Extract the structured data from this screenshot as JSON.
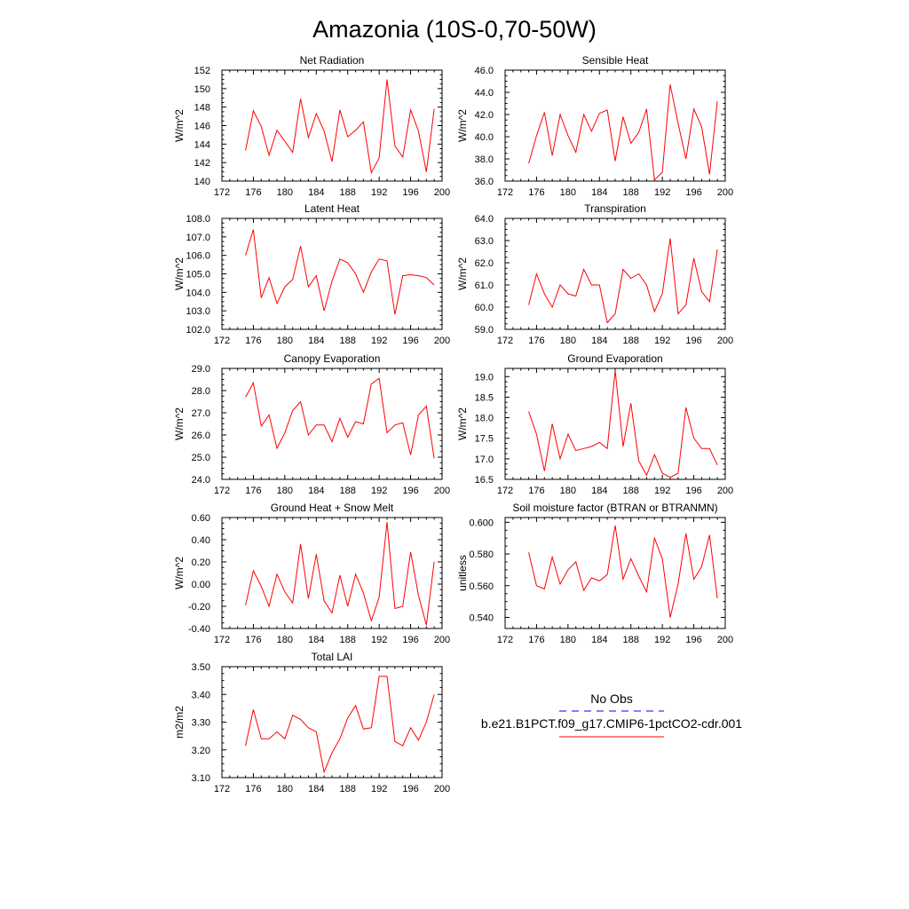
{
  "page_title": "Amazonia (10S-0,70-50W)",
  "legend": {
    "obs_label": "No Obs",
    "model_label": "b.e21.B1PCT.f09_g17.CMIP6-1pctCO2-cdr.001",
    "obs_color": "#0000ff",
    "model_color": "#ff0000"
  },
  "line_color": "#ff0000",
  "chart_data": [
    {
      "type": "line",
      "title": "Net Radiation",
      "ylabel": "W/m^2",
      "xlim": [
        172,
        200
      ],
      "ylim": [
        140,
        152
      ],
      "xticks": [
        172,
        176,
        180,
        184,
        188,
        192,
        196,
        200
      ],
      "xtick_labels": [
        "172",
        "176",
        "180",
        "184",
        "188",
        "192",
        "196",
        "200"
      ],
      "yticks": [
        140,
        142,
        144,
        146,
        148,
        150,
        152
      ],
      "ytick_labels": [
        "140",
        "142",
        "144",
        "146",
        "148",
        "150",
        "152"
      ],
      "x": [
        175,
        176,
        177,
        178,
        179,
        180,
        181,
        182,
        183,
        184,
        185,
        186,
        187,
        188,
        189,
        190,
        191,
        192,
        193,
        194,
        195,
        196,
        197,
        198,
        199
      ],
      "y": [
        143.3,
        147.6,
        145.9,
        142.8,
        145.5,
        144.3,
        143.1,
        148.9,
        144.7,
        147.3,
        145.4,
        142.1,
        147.7,
        144.8,
        145.5,
        146.4,
        140.9,
        142.5,
        151.0,
        143.8,
        142.6,
        147.7,
        145.4,
        141.0,
        147.8
      ]
    },
    {
      "type": "line",
      "title": "Sensible Heat",
      "ylabel": "W/m^2",
      "xlim": [
        172,
        200
      ],
      "ylim": [
        36.0,
        46.0
      ],
      "xticks": [
        172,
        176,
        180,
        184,
        188,
        192,
        196,
        200
      ],
      "xtick_labels": [
        "172",
        "176",
        "180",
        "184",
        "188",
        "192",
        "196",
        "200"
      ],
      "yticks": [
        36,
        38,
        40,
        42,
        44,
        46
      ],
      "ytick_labels": [
        "36.0",
        "38.0",
        "40.0",
        "42.0",
        "44.0",
        "46.0"
      ],
      "x": [
        175,
        176,
        177,
        178,
        179,
        180,
        181,
        182,
        183,
        184,
        185,
        186,
        187,
        188,
        189,
        190,
        191,
        192,
        193,
        194,
        195,
        196,
        197,
        198,
        199
      ],
      "y": [
        37.6,
        40.1,
        42.2,
        38.3,
        42.0,
        40.1,
        38.6,
        42.0,
        40.5,
        42.1,
        42.4,
        37.8,
        41.8,
        39.4,
        40.4,
        42.5,
        36.1,
        36.8,
        44.7,
        41.2,
        38.0,
        42.5,
        40.9,
        36.6,
        43.2
      ]
    },
    {
      "type": "line",
      "title": "Latent Heat",
      "ylabel": "W/m^2",
      "xlim": [
        172,
        200
      ],
      "ylim": [
        102.0,
        108.0
      ],
      "xticks": [
        172,
        176,
        180,
        184,
        188,
        192,
        196,
        200
      ],
      "xtick_labels": [
        "172",
        "176",
        "180",
        "184",
        "188",
        "192",
        "196",
        "200"
      ],
      "yticks": [
        102,
        103,
        104,
        105,
        106,
        107,
        108
      ],
      "ytick_labels": [
        "102.0",
        "103.0",
        "104.0",
        "105.0",
        "106.0",
        "107.0",
        "108.0"
      ],
      "x": [
        175,
        176,
        177,
        178,
        179,
        180,
        181,
        182,
        183,
        184,
        185,
        186,
        187,
        188,
        189,
        190,
        191,
        192,
        193,
        194,
        195,
        196,
        197,
        198,
        199
      ],
      "y": [
        106.0,
        107.4,
        103.7,
        104.8,
        103.4,
        104.3,
        104.7,
        106.5,
        104.3,
        104.9,
        103.0,
        104.6,
        105.8,
        105.6,
        105.0,
        104.0,
        105.1,
        105.8,
        105.7,
        102.8,
        104.9,
        104.95,
        104.9,
        104.8,
        104.4
      ]
    },
    {
      "type": "line",
      "title": "Transpiration",
      "ylabel": "W/m^2",
      "xlim": [
        172,
        200
      ],
      "ylim": [
        59.0,
        64.0
      ],
      "xticks": [
        172,
        176,
        180,
        184,
        188,
        192,
        196,
        200
      ],
      "xtick_labels": [
        "172",
        "176",
        "180",
        "184",
        "188",
        "192",
        "196",
        "200"
      ],
      "yticks": [
        59,
        60,
        61,
        62,
        63,
        64
      ],
      "ytick_labels": [
        "59.0",
        "60.0",
        "61.0",
        "62.0",
        "63.0",
        "64.0"
      ],
      "x": [
        175,
        176,
        177,
        178,
        179,
        180,
        181,
        182,
        183,
        184,
        185,
        186,
        187,
        188,
        189,
        190,
        191,
        192,
        193,
        194,
        195,
        196,
        197,
        198,
        199
      ],
      "y": [
        60.1,
        61.5,
        60.6,
        60.0,
        61.0,
        60.6,
        60.5,
        61.7,
        61.0,
        61.0,
        59.3,
        59.7,
        61.7,
        61.3,
        61.5,
        61.0,
        59.8,
        60.6,
        63.1,
        59.7,
        60.1,
        62.2,
        60.7,
        60.25,
        62.6
      ]
    },
    {
      "type": "line",
      "title": "Canopy Evaporation",
      "ylabel": "W/m^2",
      "xlim": [
        172,
        200
      ],
      "ylim": [
        24.0,
        29.0
      ],
      "xticks": [
        172,
        176,
        180,
        184,
        188,
        192,
        196,
        200
      ],
      "xtick_labels": [
        "172",
        "176",
        "180",
        "184",
        "188",
        "192",
        "196",
        "200"
      ],
      "yticks": [
        24,
        25,
        26,
        27,
        28,
        29
      ],
      "ytick_labels": [
        "24.0",
        "25.0",
        "26.0",
        "27.0",
        "28.0",
        "29.0"
      ],
      "x": [
        175,
        176,
        177,
        178,
        179,
        180,
        181,
        182,
        183,
        184,
        185,
        186,
        187,
        188,
        189,
        190,
        191,
        192,
        193,
        194,
        195,
        196,
        197,
        198,
        199
      ],
      "y": [
        27.7,
        28.35,
        26.4,
        26.9,
        25.4,
        26.1,
        27.1,
        27.5,
        26.0,
        26.45,
        26.45,
        25.7,
        26.75,
        25.9,
        26.6,
        26.5,
        28.3,
        28.55,
        26.1,
        26.45,
        26.55,
        25.1,
        26.9,
        27.3,
        24.95
      ]
    },
    {
      "type": "line",
      "title": "Ground Evaporation",
      "ylabel": "W/m^2",
      "xlim": [
        172,
        200
      ],
      "ylim": [
        16.5,
        19.2
      ],
      "xticks": [
        172,
        176,
        180,
        184,
        188,
        192,
        196,
        200
      ],
      "xtick_labels": [
        "172",
        "176",
        "180",
        "184",
        "188",
        "192",
        "196",
        "200"
      ],
      "yticks": [
        16.5,
        17.0,
        17.5,
        18.0,
        18.5,
        19.0
      ],
      "ytick_labels": [
        "16.5",
        "17.0",
        "17.5",
        "18.0",
        "18.5",
        "19.0"
      ],
      "x": [
        175,
        176,
        177,
        178,
        179,
        180,
        181,
        182,
        183,
        184,
        185,
        186,
        187,
        188,
        189,
        190,
        191,
        192,
        193,
        194,
        195,
        196,
        197,
        198,
        199
      ],
      "y": [
        18.15,
        17.6,
        16.7,
        17.85,
        17.0,
        17.6,
        17.2,
        17.25,
        17.3,
        17.4,
        17.25,
        19.15,
        17.3,
        18.35,
        16.95,
        16.6,
        17.1,
        16.65,
        16.55,
        16.65,
        18.25,
        17.5,
        17.25,
        17.25,
        16.85
      ]
    },
    {
      "type": "line",
      "title": "Ground Heat + Snow Melt",
      "ylabel": "W/m^2",
      "xlim": [
        172,
        200
      ],
      "ylim": [
        -0.4,
        0.6
      ],
      "xticks": [
        172,
        176,
        180,
        184,
        188,
        192,
        196,
        200
      ],
      "xtick_labels": [
        "172",
        "176",
        "180",
        "184",
        "188",
        "192",
        "196",
        "200"
      ],
      "yticks": [
        -0.4,
        -0.2,
        0.0,
        0.2,
        0.4,
        0.6
      ],
      "ytick_labels": [
        "-0.40",
        "-0.20",
        "0.00",
        "0.20",
        "0.40",
        "0.60"
      ],
      "x": [
        175,
        176,
        177,
        178,
        179,
        180,
        181,
        182,
        183,
        184,
        185,
        186,
        187,
        188,
        189,
        190,
        191,
        192,
        193,
        194,
        195,
        196,
        197,
        198,
        199
      ],
      "y": [
        -0.19,
        0.12,
        -0.02,
        -0.2,
        0.09,
        -0.07,
        -0.17,
        0.36,
        -0.13,
        0.27,
        -0.15,
        -0.26,
        0.08,
        -0.2,
        0.09,
        -0.08,
        -0.33,
        -0.12,
        0.56,
        -0.22,
        -0.2,
        0.29,
        -0.1,
        -0.37,
        0.2
      ]
    },
    {
      "type": "line",
      "title": "Soil moisture factor (BTRAN or BTRANMN)",
      "ylabel": "unitless",
      "xlim": [
        172,
        200
      ],
      "ylim": [
        0.533,
        0.603
      ],
      "xticks": [
        172,
        176,
        180,
        184,
        188,
        192,
        196,
        200
      ],
      "xtick_labels": [
        "172",
        "176",
        "180",
        "184",
        "188",
        "192",
        "196",
        "200"
      ],
      "yticks": [
        0.54,
        0.56,
        0.58,
        0.6
      ],
      "ytick_labels": [
        "0.540",
        "0.560",
        "0.580",
        "0.600"
      ],
      "x": [
        175,
        176,
        177,
        178,
        179,
        180,
        181,
        182,
        183,
        184,
        185,
        186,
        187,
        188,
        189,
        190,
        191,
        192,
        193,
        194,
        195,
        196,
        197,
        198,
        199
      ],
      "y": [
        0.581,
        0.56,
        0.558,
        0.578,
        0.561,
        0.57,
        0.575,
        0.557,
        0.565,
        0.563,
        0.567,
        0.598,
        0.564,
        0.577,
        0.566,
        0.556,
        0.59,
        0.577,
        0.54,
        0.561,
        0.593,
        0.564,
        0.572,
        0.592,
        0.552
      ]
    },
    {
      "type": "line",
      "title": "Total LAI",
      "ylabel": "m2/m2",
      "xlim": [
        172,
        200
      ],
      "ylim": [
        3.1,
        3.5
      ],
      "xticks": [
        172,
        176,
        180,
        184,
        188,
        192,
        196,
        200
      ],
      "xtick_labels": [
        "172",
        "176",
        "180",
        "184",
        "188",
        "192",
        "196",
        "200"
      ],
      "yticks": [
        3.1,
        3.2,
        3.3,
        3.4,
        3.5
      ],
      "ytick_labels": [
        "3.10",
        "3.20",
        "3.30",
        "3.40",
        "3.50"
      ],
      "x": [
        175,
        176,
        177,
        178,
        179,
        180,
        181,
        182,
        183,
        184,
        185,
        186,
        187,
        188,
        189,
        190,
        191,
        192,
        193,
        194,
        195,
        196,
        197,
        198,
        199
      ],
      "y": [
        3.215,
        3.345,
        3.24,
        3.24,
        3.265,
        3.24,
        3.325,
        3.31,
        3.28,
        3.265,
        3.12,
        3.19,
        3.24,
        3.315,
        3.36,
        3.275,
        3.28,
        3.465,
        3.465,
        3.23,
        3.215,
        3.28,
        3.235,
        3.3,
        3.4
      ]
    }
  ]
}
